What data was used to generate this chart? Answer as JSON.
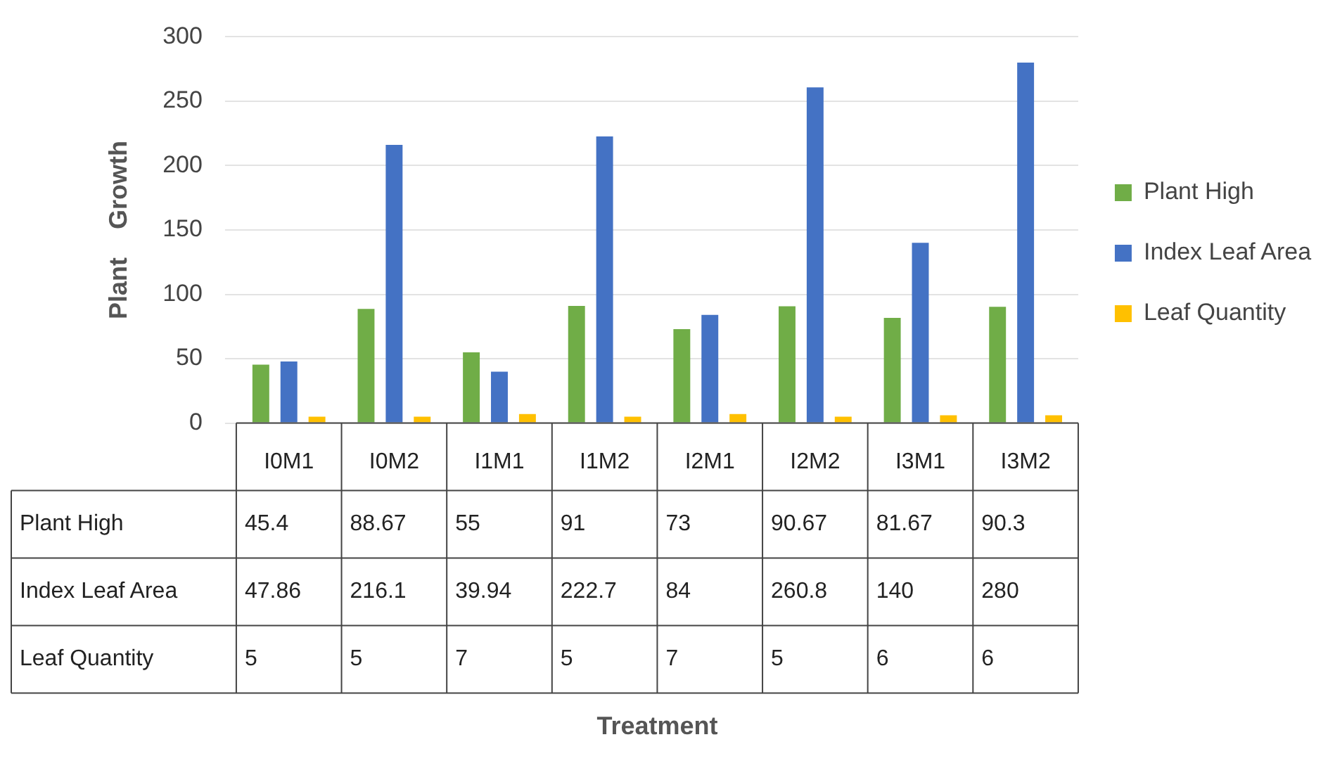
{
  "chart_data": {
    "type": "bar",
    "ylabel": "Plant    Growth",
    "annotations": [
      "Treatment"
    ],
    "categories": [
      "I0M1",
      "I0M2",
      "I1M1",
      "I1M2",
      "I2M1",
      "I2M2",
      "I3M1",
      "I3M2"
    ],
    "series": [
      {
        "name": "Plant High",
        "color": "#70ad47",
        "values": [
          45.4,
          88.67,
          55,
          91,
          73,
          90.67,
          81.67,
          90.3
        ],
        "value_labels": [
          "45.4",
          "88.67",
          "55",
          "91",
          "73",
          "90.67",
          "81.67",
          "90.3"
        ]
      },
      {
        "name": "Index Leaf Area",
        "color": "#4472c4",
        "values": [
          47.86,
          216.1,
          39.94,
          222.7,
          84,
          260.8,
          140,
          280
        ],
        "value_labels": [
          "47.86",
          "216.1",
          "39.94",
          "222.7",
          "84",
          "260.8",
          "140",
          "280"
        ]
      },
      {
        "name": "Leaf Quantity",
        "color": "#ffc000",
        "values": [
          5,
          5,
          7,
          5,
          7,
          5,
          6,
          6
        ],
        "value_labels": [
          "5",
          "5",
          "7",
          "5",
          "7",
          "5",
          "6",
          "6"
        ]
      }
    ],
    "ylim": [
      0,
      300
    ],
    "yticks": [
      0,
      50,
      100,
      150,
      200,
      250,
      300
    ],
    "grid": "y",
    "legend": "right"
  }
}
